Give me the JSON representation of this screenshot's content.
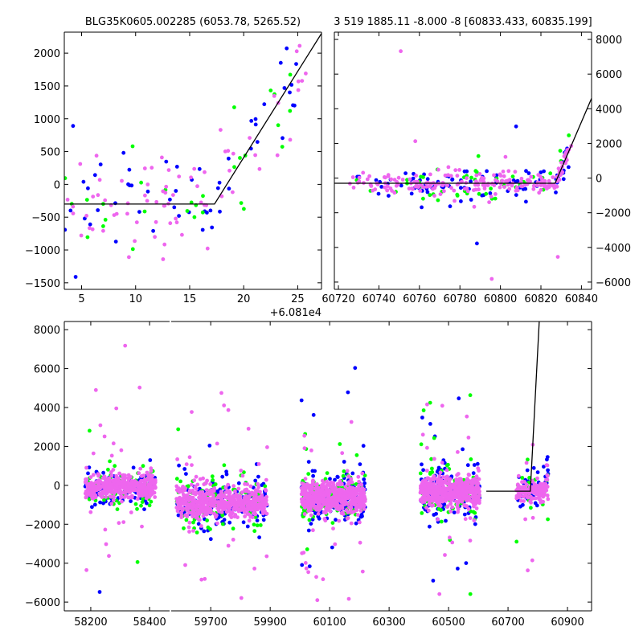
{
  "colors": {
    "blue": "#0000ff",
    "green": "#00ff00",
    "magenta": "#ee66ee",
    "model": "#000000"
  },
  "chart_data": [
    {
      "type": "scatter",
      "id": "top-left",
      "title": "BLG35K0605.002285 (6053.78, 5265.52)",
      "x_offset_label": "+6.081e4",
      "xlim": [
        3.4,
        27.2
      ],
      "ylim": [
        -1600,
        2320
      ],
      "xticks": [
        "5",
        "10",
        "15",
        "20",
        "25"
      ],
      "xtick_values": [
        5,
        10,
        15,
        20,
        25
      ],
      "yticks": [
        "2000",
        "1500",
        "1000",
        "500",
        "0",
        "−500",
        "−1000",
        "−1500"
      ],
      "ytick_values": [
        2000,
        1500,
        1000,
        500,
        0,
        -500,
        -1000,
        -1500
      ],
      "model": [
        [
          3.4,
          -300
        ],
        [
          17.3,
          -300
        ],
        [
          27.2,
          2300
        ]
      ],
      "series": [
        {
          "name": "blue",
          "n": 55,
          "x": [
            3.4,
            26
          ],
          "noise": 420
        },
        {
          "name": "green",
          "n": 30,
          "x": [
            3.4,
            26
          ],
          "noise": 420
        },
        {
          "name": "magenta",
          "n": 75,
          "x": [
            3.4,
            26
          ],
          "noise": 420
        }
      ]
    },
    {
      "type": "scatter",
      "id": "top-right",
      "title": "3 519 1885.11 -8.000 -8 [60833.433, 60835.199]",
      "xlim": [
        60718,
        60845
      ],
      "ylim": [
        -6420,
        8420
      ],
      "xticks": [
        "60720",
        "60740",
        "60760",
        "60780",
        "60800",
        "60820",
        "60840"
      ],
      "xtick_values": [
        60720,
        60740,
        60760,
        60780,
        60800,
        60820,
        60840
      ],
      "yticks": [
        "8000",
        "6000",
        "4000",
        "2000",
        "0",
        "−2000",
        "−4000",
        "−6000"
      ],
      "ytick_values": [
        8000,
        6000,
        4000,
        2000,
        0,
        -2000,
        -4000,
        -6000
      ],
      "model": [
        [
          60718,
          -300
        ],
        [
          60827,
          -300
        ],
        [
          60845,
          4600
        ]
      ],
      "series": [
        {
          "name": "blue",
          "n": 90,
          "x": [
            60728,
            60835
          ],
          "noise": 500
        },
        {
          "name": "green",
          "n": 50,
          "x": [
            60728,
            60835
          ],
          "noise": 600
        },
        {
          "name": "magenta",
          "n": 220,
          "x": [
            60725,
            60835
          ],
          "noise": 300
        }
      ]
    },
    {
      "type": "scatter",
      "id": "bottom",
      "broken_x": true,
      "segments": [
        {
          "xlim": [
            58110,
            58468
          ],
          "xticks": [
            "58200",
            "58400"
          ],
          "xtick_values": [
            58200,
            58400
          ]
        },
        {
          "xlim": [
            59567,
            60981
          ],
          "xticks": [
            "59700",
            "59900",
            "60100",
            "60300",
            "60500",
            "60700",
            "60900"
          ],
          "xtick_values": [
            59700,
            59900,
            60100,
            60300,
            60500,
            60700,
            60900
          ]
        }
      ],
      "ylim": [
        -6450,
        8420
      ],
      "yticks": [
        "8000",
        "6000",
        "4000",
        "2000",
        "0",
        "−2000",
        "−4000",
        "−6000"
      ],
      "ytick_values": [
        8000,
        6000,
        4000,
        2000,
        0,
        -2000,
        -4000,
        -6000
      ],
      "model": [
        [
          60627,
          -300
        ],
        [
          60775,
          -300
        ],
        [
          60805,
          8420
        ]
      ],
      "clusters": [
        {
          "x": [
            58180,
            58420
          ],
          "y_center": -100,
          "sd": 450,
          "n": [
            120,
            70,
            420
          ]
        },
        {
          "x": [
            59585,
            59890
          ],
          "y_center": -900,
          "sd": 600,
          "n": [
            160,
            110,
            520
          ]
        },
        {
          "x": [
            60005,
            60220
          ],
          "y_center": -600,
          "sd": 550,
          "n": [
            170,
            120,
            540
          ]
        },
        {
          "x": [
            60405,
            60605
          ],
          "y_center": -300,
          "sd": 550,
          "n": [
            170,
            90,
            520
          ]
        },
        {
          "x": [
            60728,
            60835
          ],
          "y_center": -300,
          "sd": 350,
          "n": [
            50,
            30,
            160
          ]
        }
      ]
    }
  ]
}
